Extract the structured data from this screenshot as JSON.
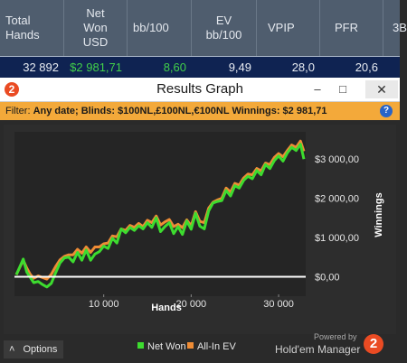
{
  "stats_table": {
    "headers": [
      [
        "Total",
        "Hands"
      ],
      [
        "Net",
        "Won",
        "USD"
      ],
      [
        "bb/100"
      ],
      [
        "EV",
        "bb/100"
      ],
      [
        "VPIP"
      ],
      [
        "PFR"
      ],
      [
        "3B"
      ]
    ],
    "values": [
      "32 892",
      "$2 981,71",
      "8,60",
      "9,49",
      "28,0",
      "20,6",
      ""
    ]
  },
  "window": {
    "title": "Results Graph",
    "app_icon": "hem2-logo-icon",
    "app_icon_glyph": "2",
    "minimize_glyph": "–",
    "maximize_glyph": "□",
    "close_glyph": "✕"
  },
  "filter": {
    "prefix": "Filter:",
    "text": "Any date; Blinds: $100NL,£100NL,€100NL Winnings: $2 981,71",
    "help_glyph": "?"
  },
  "chart_data": {
    "type": "line",
    "xlabel": "Hands",
    "ylabel": "Winnings",
    "xlim": [
      0,
      32892
    ],
    "ylim": [
      -450,
      3650
    ],
    "x_ticks": [
      10000,
      20000,
      30000
    ],
    "x_tick_labels": [
      "10 000",
      "20 000",
      "30 000"
    ],
    "y_ticks": [
      0,
      1000,
      2000,
      3000
    ],
    "y_tick_labels": [
      "$0,00",
      "$1 000,00",
      "$2 000,00",
      "$3 000,00"
    ],
    "zero_line": true,
    "grid": false,
    "x": [
      0,
      400,
      800,
      1200,
      1600,
      2000,
      2500,
      3000,
      3500,
      4000,
      4500,
      5000,
      5500,
      6000,
      6500,
      7000,
      7500,
      8000,
      8500,
      9000,
      9500,
      10000,
      10500,
      11000,
      11500,
      12000,
      12500,
      13000,
      13500,
      14000,
      14500,
      15000,
      15500,
      16000,
      16500,
      17000,
      17500,
      18000,
      18500,
      19000,
      19500,
      20000,
      20500,
      21000,
      21500,
      22000,
      22500,
      23000,
      23500,
      24000,
      24500,
      25000,
      25500,
      26000,
      26500,
      27000,
      27500,
      28000,
      28500,
      29000,
      29500,
      30000,
      30500,
      31000,
      31500,
      32000,
      32500,
      32892
    ],
    "series": [
      {
        "name": "Net Won",
        "color": "#3ddc2f",
        "values": [
          50,
          250,
          450,
          120,
          -20,
          -150,
          -120,
          -200,
          -260,
          -170,
          100,
          350,
          480,
          500,
          380,
          620,
          420,
          680,
          420,
          580,
          640,
          780,
          720,
          980,
          860,
          1220,
          1120,
          1260,
          1180,
          1300,
          1220,
          1380,
          1260,
          1500,
          1150,
          1280,
          1380,
          1100,
          1280,
          1080,
          1420,
          1210,
          1620,
          1290,
          1220,
          1680,
          1880,
          1920,
          1940,
          2200,
          2060,
          2320,
          2260,
          2460,
          2560,
          2500,
          2710,
          2600,
          2860,
          2760,
          2960,
          3080,
          2950,
          3160,
          3300,
          3220,
          3380,
          3000
        ]
      },
      {
        "name": "All-In EV",
        "color": "#ef8c35",
        "values": [
          50,
          240,
          420,
          220,
          60,
          -40,
          20,
          -20,
          -60,
          60,
          260,
          430,
          520,
          560,
          560,
          700,
          600,
          760,
          620,
          760,
          760,
          840,
          860,
          1040,
          1020,
          1220,
          1180,
          1310,
          1260,
          1360,
          1280,
          1440,
          1380,
          1550,
          1320,
          1400,
          1460,
          1280,
          1340,
          1250,
          1450,
          1300,
          1660,
          1410,
          1380,
          1750,
          1900,
          1960,
          2000,
          2260,
          2160,
          2380,
          2340,
          2520,
          2620,
          2600,
          2760,
          2700,
          2900,
          2860,
          3040,
          3140,
          3060,
          3220,
          3360,
          3300,
          3460,
          3200
        ]
      }
    ]
  },
  "footer": {
    "options_label": "Options",
    "options_glyph": "˄",
    "legend": [
      {
        "label": "Net Won",
        "color": "#3ddc2f"
      },
      {
        "label": "All-In EV",
        "color": "#ef8c35"
      }
    ],
    "powered_by": "Powered by",
    "brand_name": "Hold'em Manager",
    "brand_logo_glyph": "2"
  }
}
